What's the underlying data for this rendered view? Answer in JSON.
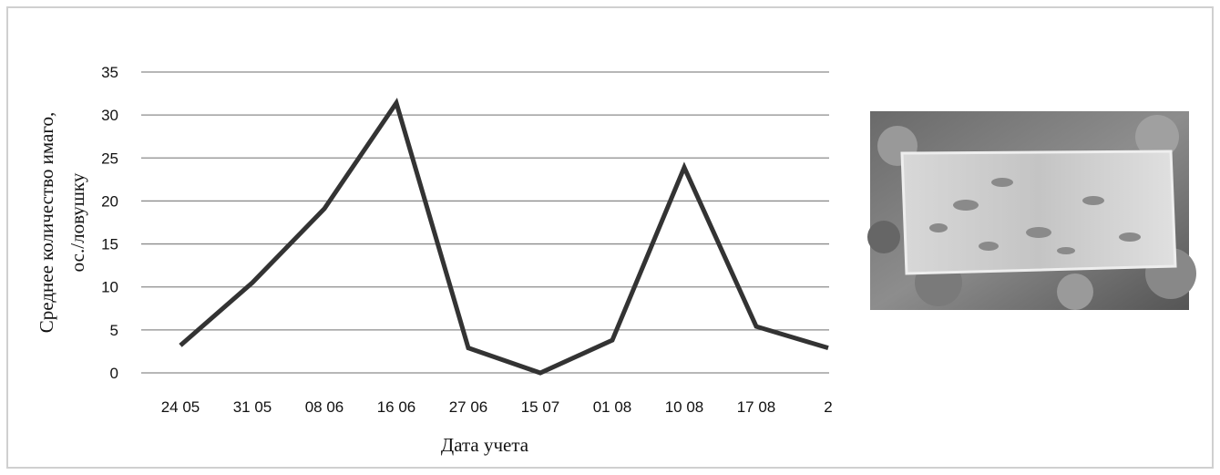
{
  "chart_data": {
    "type": "line",
    "y_label": [
      "Среднее количество имаго,",
      "ос./ловушку"
    ],
    "x_label": "Дата учета",
    "categories": [
      "24 05",
      "31 05",
      "08 06",
      "16 06",
      "27 06",
      "15 07",
      "01 08",
      "10 08",
      "17 08",
      "2"
    ],
    "series": [
      {
        "color": "#333333",
        "values": [
          3.2,
          10.5,
          19.1,
          31.4,
          2.9,
          0,
          3.8,
          23.9,
          5.4,
          2.9
        ]
      }
    ],
    "ylim": [
      0,
      35
    ],
    "yticks": [
      0,
      5,
      10,
      15,
      20,
      25,
      30,
      35
    ],
    "grid": true
  }
}
